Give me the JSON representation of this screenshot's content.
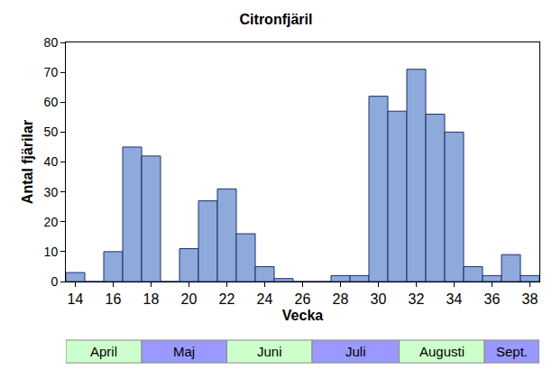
{
  "chart_data": {
    "type": "bar",
    "title": "Citronfjäril",
    "x_label": "Vecka",
    "y_label": "Antal fjärilar",
    "x": [
      14,
      15,
      16,
      17,
      18,
      19,
      20,
      21,
      22,
      23,
      24,
      25,
      26,
      27,
      28,
      29,
      30,
      31,
      32,
      33,
      34,
      35,
      36,
      37,
      38
    ],
    "values": [
      3,
      0,
      10,
      45,
      42,
      0,
      11,
      27,
      31,
      16,
      5,
      1,
      0,
      0,
      2,
      2,
      62,
      57,
      71,
      56,
      50,
      5,
      2,
      9,
      2
    ],
    "color": "#8eaadb",
    "xlim": [
      13.5,
      38.5
    ],
    "ylim": [
      0,
      80
    ],
    "xticks": [
      14,
      16,
      18,
      20,
      22,
      24,
      26,
      28,
      30,
      32,
      34,
      36,
      38
    ],
    "yticks": [
      0,
      10,
      20,
      30,
      40,
      50,
      60,
      70,
      80
    ],
    "grid": false,
    "months": [
      {
        "label": "April",
        "start": 13.5,
        "end": 17.5,
        "color": "#ccffcc"
      },
      {
        "label": "Maj",
        "start": 17.5,
        "end": 22,
        "color": "#9999ff"
      },
      {
        "label": "Juni",
        "start": 22,
        "end": 26.5,
        "color": "#ccffcc"
      },
      {
        "label": "Juli",
        "start": 26.5,
        "end": 31.1,
        "color": "#9999ff"
      },
      {
        "label": "Augusti",
        "start": 31.1,
        "end": 35.6,
        "color": "#ccffcc"
      },
      {
        "label": "Sept.",
        "start": 35.6,
        "end": 38.5,
        "color": "#9999ff"
      }
    ]
  }
}
